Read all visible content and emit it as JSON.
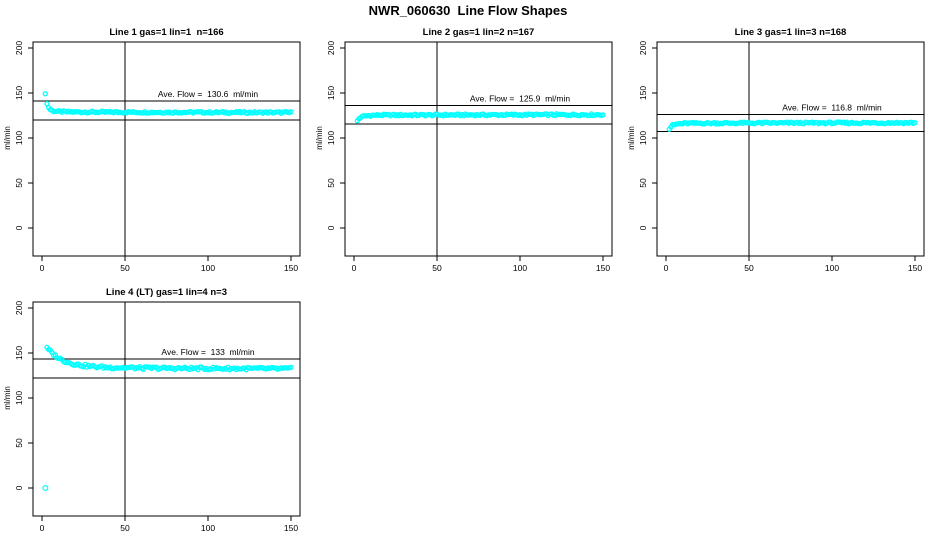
{
  "title": "NWR_060630  Line Flow Shapes",
  "colors": {
    "points": "#00FFFF",
    "axis": "#000000",
    "background": "#FFFFFF"
  },
  "chart_data": {
    "type": "scatter",
    "title": "NWR_060630  Line Flow Shapes",
    "grid": {
      "rows": 2,
      "cols": 3,
      "occupied_cells": 4
    },
    "ylabel": "ml/min",
    "xlabel": "",
    "x_ticks": [
      0,
      50,
      100,
      150
    ],
    "y_ticks": [
      0,
      50,
      100,
      150,
      200
    ],
    "xlim": [
      -6,
      156
    ],
    "ylim": [
      -31,
      207
    ],
    "vline_x": 50,
    "marker": "open-circle",
    "marker_color": "#00FFFF",
    "panels": [
      {
        "title": "Line 1 gas=1 lin=1  n=166",
        "n": 166,
        "ave_flow": 130.6,
        "ave_label": "Ave. Flow =  130.6  ml/min",
        "ref_lines": [
          141.1,
          120.2
        ],
        "keypoints": [
          [
            2,
            150
          ],
          [
            3,
            138
          ],
          [
            4,
            134
          ],
          [
            5,
            131.5
          ],
          [
            7,
            130
          ],
          [
            10,
            129.3
          ],
          [
            15,
            129
          ],
          [
            30,
            128.8
          ],
          [
            60,
            128.6
          ],
          [
            100,
            128.5
          ],
          [
            150,
            128.3
          ]
        ],
        "outliers": [],
        "noise": 1.0
      },
      {
        "title": "Line 2 gas=1 lin=2 n=167",
        "n": 167,
        "ave_flow": 125.9,
        "ave_label": "Ave. Flow =  125.9  ml/min",
        "ref_lines": [
          136.0,
          115.8
        ],
        "keypoints": [
          [
            2,
            119
          ],
          [
            3,
            121.5
          ],
          [
            4,
            123
          ],
          [
            6,
            124.3
          ],
          [
            9,
            125
          ],
          [
            15,
            125.4
          ],
          [
            50,
            125.6
          ],
          [
            100,
            125.8
          ],
          [
            150,
            125.9
          ]
        ],
        "outliers": [],
        "noise": 1.0
      },
      {
        "title": "Line 3 gas=1 lin=3 n=168",
        "n": 168,
        "ave_flow": 116.8,
        "ave_label": "Ave. Flow =  116.8  ml/min",
        "ref_lines": [
          126.1,
          107.5
        ],
        "keypoints": [
          [
            2,
            110
          ],
          [
            3,
            112.5
          ],
          [
            4,
            114
          ],
          [
            6,
            115.3
          ],
          [
            9,
            116
          ],
          [
            15,
            116.4
          ],
          [
            50,
            116.6
          ],
          [
            100,
            116.8
          ],
          [
            150,
            116.9
          ]
        ],
        "outliers": [],
        "noise": 1.0
      },
      {
        "title": "Line 4 (LT) gas=1 lin=4 n=3",
        "n": 3,
        "ave_flow": 133,
        "ave_label": "Ave. Flow =  133  ml/min",
        "ref_lines": [
          143.6,
          122.4
        ],
        "keypoints": [
          [
            3,
            155
          ],
          [
            4,
            153.5
          ],
          [
            5,
            152
          ],
          [
            6,
            150
          ],
          [
            8,
            147
          ],
          [
            10,
            144.5
          ],
          [
            13,
            141.5
          ],
          [
            16,
            139.5
          ],
          [
            20,
            137.5
          ],
          [
            25,
            136
          ],
          [
            30,
            135
          ],
          [
            40,
            134
          ],
          [
            55,
            133.5
          ],
          [
            80,
            133
          ],
          [
            110,
            132.8
          ],
          [
            150,
            132.5
          ]
        ],
        "outliers": [
          [
            2,
            0
          ]
        ],
        "noise": 1.5
      }
    ]
  }
}
